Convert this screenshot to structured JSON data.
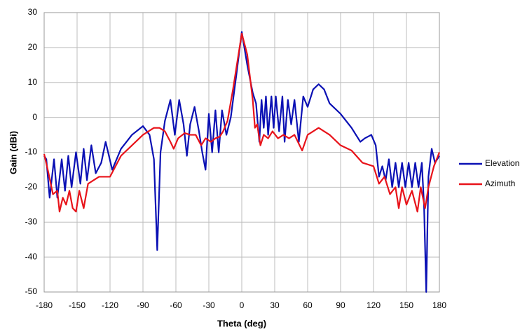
{
  "chart_data": {
    "type": "line",
    "x_label": "Theta (deg)",
    "y_label": "Gain (dBi)",
    "xlim": [
      -180,
      180
    ],
    "xticks": [
      -180,
      -150,
      -120,
      -90,
      -60,
      -30,
      0,
      30,
      60,
      90,
      120,
      150,
      180
    ],
    "ylim": [
      -50,
      30
    ],
    "yticks": [
      -50,
      -40,
      -30,
      -20,
      -10,
      0,
      10,
      20,
      30
    ],
    "grid": true,
    "legend": "right",
    "series": [
      {
        "name": "Elevation",
        "color": "#0a10b4",
        "x": [
          -180,
          -178,
          -175,
          -171,
          -168,
          -164,
          -161,
          -158,
          -155,
          -151,
          -147,
          -144,
          -141,
          -137,
          -133,
          -128,
          -124,
          -118,
          -110,
          -100,
          -90,
          -84,
          -80,
          -77,
          -74,
          -70,
          -65,
          -61,
          -57,
          -53,
          -50,
          -47,
          -43,
          -39,
          -36,
          -33,
          -30,
          -27,
          -24,
          -21,
          -18,
          -14,
          -10,
          -5,
          0,
          5,
          10,
          13,
          16,
          18,
          20,
          22,
          24,
          27,
          29,
          31,
          34,
          37,
          39,
          42,
          45,
          48,
          52,
          56,
          60,
          65,
          70,
          75,
          80,
          90,
          100,
          108,
          112,
          118,
          122,
          125,
          128,
          131,
          134,
          137,
          140,
          143,
          146,
          149,
          152,
          155,
          158,
          161,
          164,
          166,
          168,
          170,
          173,
          176,
          180
        ],
        "values": [
          -11,
          -12,
          -23,
          -12,
          -23,
          -12,
          -21,
          -11,
          -20,
          -10,
          -19,
          -9,
          -18,
          -8,
          -16,
          -13,
          -7,
          -15,
          -9,
          -5,
          -2.5,
          -5,
          -12,
          -38,
          -10,
          -1,
          5,
          -5,
          5,
          -2,
          -11,
          -2,
          3,
          -4,
          -10,
          -15,
          1,
          -10,
          2,
          -10,
          2,
          -5,
          0,
          12,
          24.5,
          15,
          7,
          4,
          -7,
          5,
          -3,
          6,
          -5,
          6,
          -3,
          6,
          -4,
          6,
          -7,
          5,
          -2,
          5,
          -7,
          6,
          3,
          8,
          9.5,
          8,
          4,
          1,
          -3,
          -7,
          -6,
          -5,
          -8,
          -17,
          -14,
          -18,
          -12,
          -20,
          -13,
          -20,
          -13,
          -20,
          -13,
          -20,
          -13,
          -20,
          -13,
          -25,
          -50,
          -17,
          -9,
          -13,
          -11
        ]
      },
      {
        "name": "Azimuth",
        "color": "#e8131a",
        "x": [
          -180,
          -176,
          -172,
          -168,
          -166,
          -163,
          -160,
          -157,
          -154,
          -151,
          -148,
          -144,
          -140,
          -130,
          -120,
          -110,
          -100,
          -90,
          -80,
          -75,
          -70,
          -65,
          -62,
          -58,
          -52,
          -47,
          -42,
          -37,
          -33,
          -28,
          -24,
          -20,
          -17,
          -13,
          -8,
          0,
          5,
          10,
          12,
          14,
          17,
          20,
          24,
          28,
          33,
          38,
          43,
          48,
          55,
          60,
          70,
          80,
          90,
          100,
          110,
          120,
          125,
          130,
          135,
          140,
          143,
          146,
          150,
          155,
          160,
          163,
          167,
          170,
          175,
          180
        ],
        "values": [
          -10.5,
          -16,
          -22,
          -21,
          -27,
          -23,
          -25,
          -21,
          -26,
          -27,
          -21,
          -26,
          -19,
          -17,
          -17,
          -11,
          -8,
          -5,
          -3,
          -3,
          -4,
          -7,
          -9,
          -6,
          -4.5,
          -5,
          -5,
          -8,
          -6,
          -7,
          -6,
          -5.5,
          -4,
          -1,
          8,
          24,
          18,
          5,
          -3,
          -2,
          -8,
          -5,
          -6,
          -4,
          -6,
          -5,
          -6,
          -5,
          -9.5,
          -5,
          -3,
          -5,
          -8,
          -9.5,
          -13,
          -14,
          -19,
          -17,
          -22,
          -20,
          -26,
          -20,
          -25,
          -21,
          -27,
          -20,
          -26,
          -20,
          -14,
          -10
        ]
      }
    ]
  }
}
